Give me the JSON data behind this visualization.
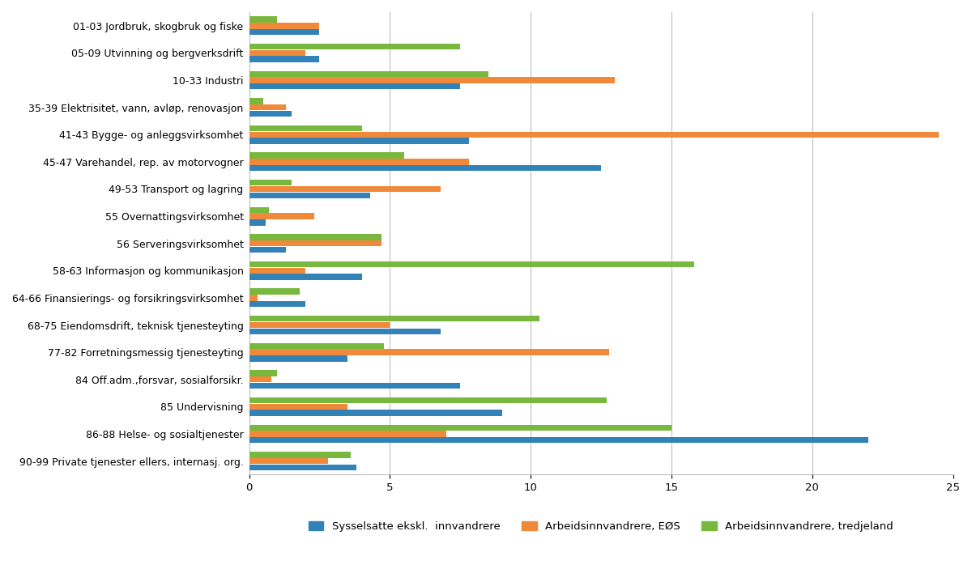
{
  "categories": [
    "01-03 Jordbruk, skogbruk og fiske",
    "05-09 Utvinning og bergverksdrift",
    "10-33 Industri",
    "35-39 Elektrisitet, vann, avløp, renovasjon",
    "41-43 Bygge- og anleggsvirksomhet",
    "45-47 Varehandel, rep. av motorvogner",
    "49-53 Transport og lagring",
    "55 Overnattingsvirksomhet",
    "56 Serveringsvirksomhet",
    "58-63 Informasjon og kommunikasjon",
    "64-66 Finansierings- og forsikringsvirksomhet",
    "68-75 Eiendomsdrift, teknisk tjenesteyting",
    "77-82 Forretningsmessig tjenesteyting",
    "84 Off.adm.,forsvar, sosialforsikr.",
    "85 Undervisning",
    "86-88 Helse- og sosialtjenester",
    "90-99 Private tjenester ellers, internasj. org."
  ],
  "blue": [
    2.5,
    2.5,
    7.5,
    1.5,
    7.8,
    12.5,
    4.3,
    0.6,
    1.3,
    4.0,
    2.0,
    6.8,
    3.5,
    7.5,
    9.0,
    22.0,
    3.8
  ],
  "orange": [
    2.5,
    2.0,
    13.0,
    1.3,
    24.5,
    7.8,
    6.8,
    2.3,
    4.7,
    2.0,
    0.3,
    5.0,
    12.8,
    0.8,
    3.5,
    7.0,
    2.8
  ],
  "green": [
    1.0,
    7.5,
    8.5,
    0.5,
    4.0,
    5.5,
    1.5,
    0.7,
    4.7,
    15.8,
    1.8,
    10.3,
    4.8,
    1.0,
    12.7,
    15.0,
    3.6
  ],
  "colors": {
    "blue": "#3282b8",
    "orange": "#f0893a",
    "green": "#79b83f"
  },
  "xlim": [
    0,
    25
  ],
  "xticks": [
    0,
    5,
    10,
    15,
    20,
    25
  ],
  "legend_labels": [
    "Sysselsatte ekskl.  innvandrere",
    "Arbeidsinnvandrere, EØS",
    "Arbeidsinnvandrere, tredjeland"
  ]
}
